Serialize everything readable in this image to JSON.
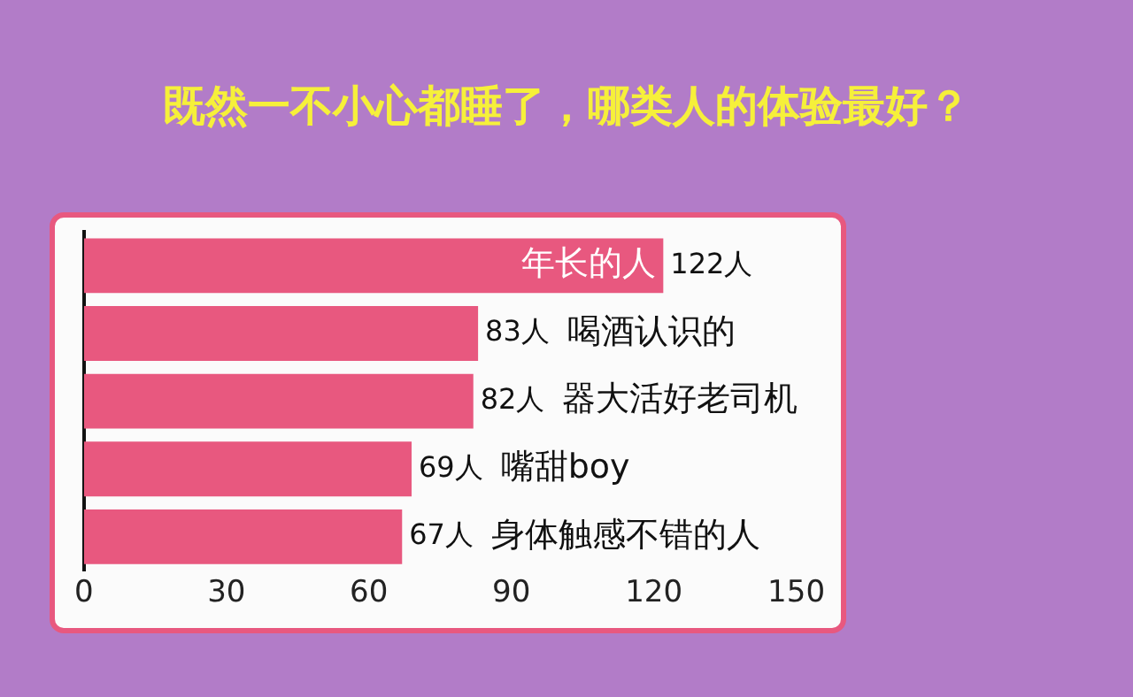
{
  "chart_data": {
    "type": "bar",
    "orientation": "horizontal",
    "title": "既然一不小心都睡了，哪类人的体验最好？",
    "categories": [
      "年长的人",
      "喝酒认识的",
      "器大活好老司机",
      "嘴甜boy",
      "身体触感不错的人"
    ],
    "values": [
      122,
      83,
      82,
      69,
      67
    ],
    "value_labels": [
      "122人",
      "83人",
      "82人",
      "69人",
      "67人"
    ],
    "color": "#e8587f",
    "xlim": [
      0,
      150
    ],
    "xticks": [
      0,
      30,
      60,
      90,
      120,
      150
    ],
    "tick_labels": "x",
    "grid": false
  }
}
